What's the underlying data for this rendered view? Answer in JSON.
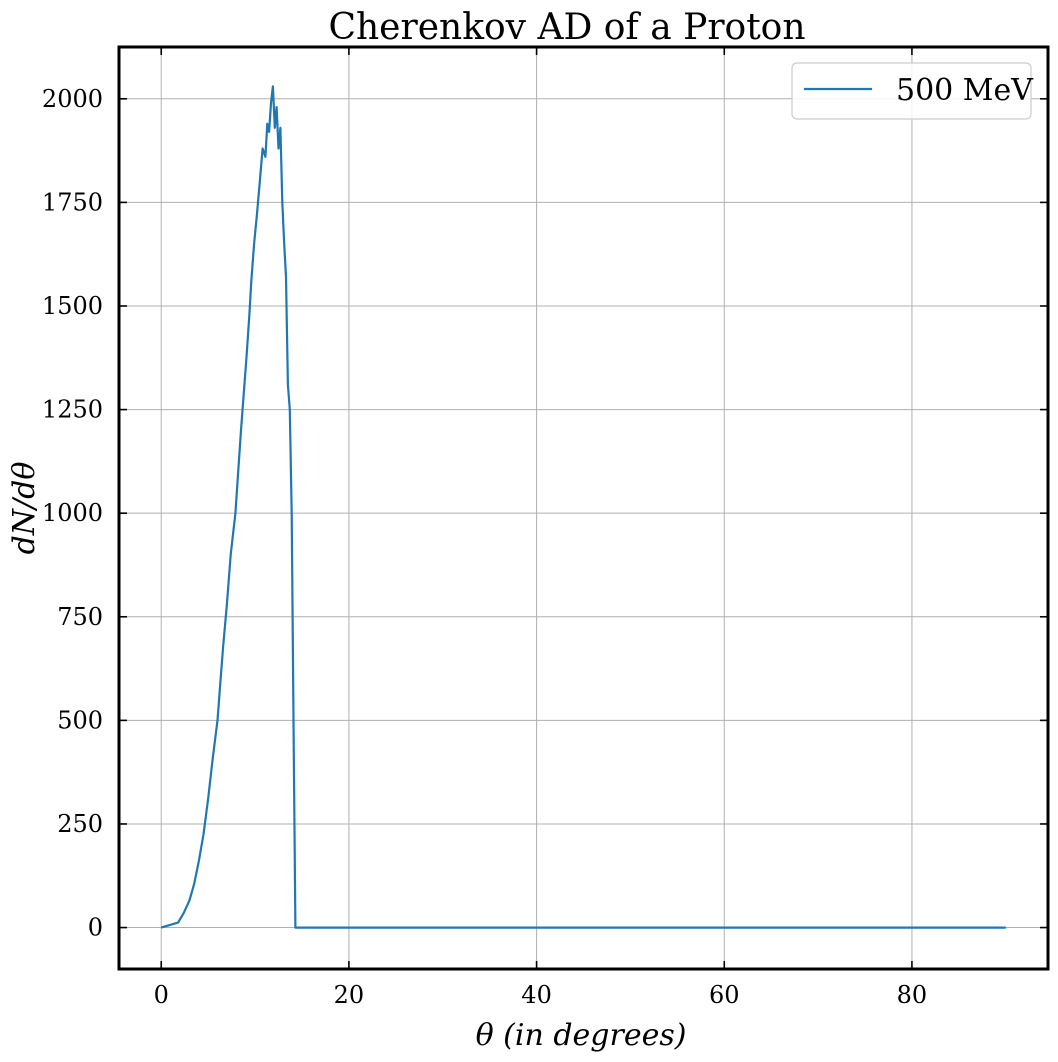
{
  "chart_data": {
    "type": "line",
    "title": "Cherenkov AD of a Proton",
    "xlabel": "θ (in degrees)",
    "ylabel": "dN/dθ",
    "xlim": [
      -4.5,
      94.5
    ],
    "ylim": [
      -100,
      2125
    ],
    "xticks": [
      0,
      20,
      40,
      60,
      80
    ],
    "yticks": [
      0,
      250,
      500,
      750,
      1000,
      1250,
      1500,
      1750,
      2000
    ],
    "grid": true,
    "legend_position": "top-right",
    "series": [
      {
        "name": "500 MeV",
        "color": "#1f77b4",
        "x": [
          0,
          1.8,
          2.4,
          3.0,
          3.5,
          4.0,
          4.5,
          5.0,
          5.5,
          6.0,
          6.3,
          6.6,
          7.0,
          7.4,
          7.9,
          8.2,
          8.5,
          8.8,
          9.1,
          9.4,
          9.6,
          9.9,
          10.2,
          10.5,
          10.8,
          11.1,
          11.3,
          11.5,
          11.7,
          11.9,
          12.1,
          12.3,
          12.5,
          12.7,
          12.9,
          13.1,
          13.3,
          13.5,
          13.7,
          13.9,
          14.1,
          14.3,
          90
        ],
        "y": [
          0,
          12,
          35,
          65,
          105,
          160,
          225,
          310,
          410,
          500,
          590,
          680,
          780,
          900,
          1000,
          1100,
          1200,
          1290,
          1380,
          1480,
          1560,
          1650,
          1720,
          1800,
          1880,
          1860,
          1940,
          1920,
          1990,
          2030,
          1930,
          1980,
          1880,
          1930,
          1750,
          1650,
          1570,
          1310,
          1250,
          1000,
          500,
          0,
          0
        ]
      }
    ]
  }
}
